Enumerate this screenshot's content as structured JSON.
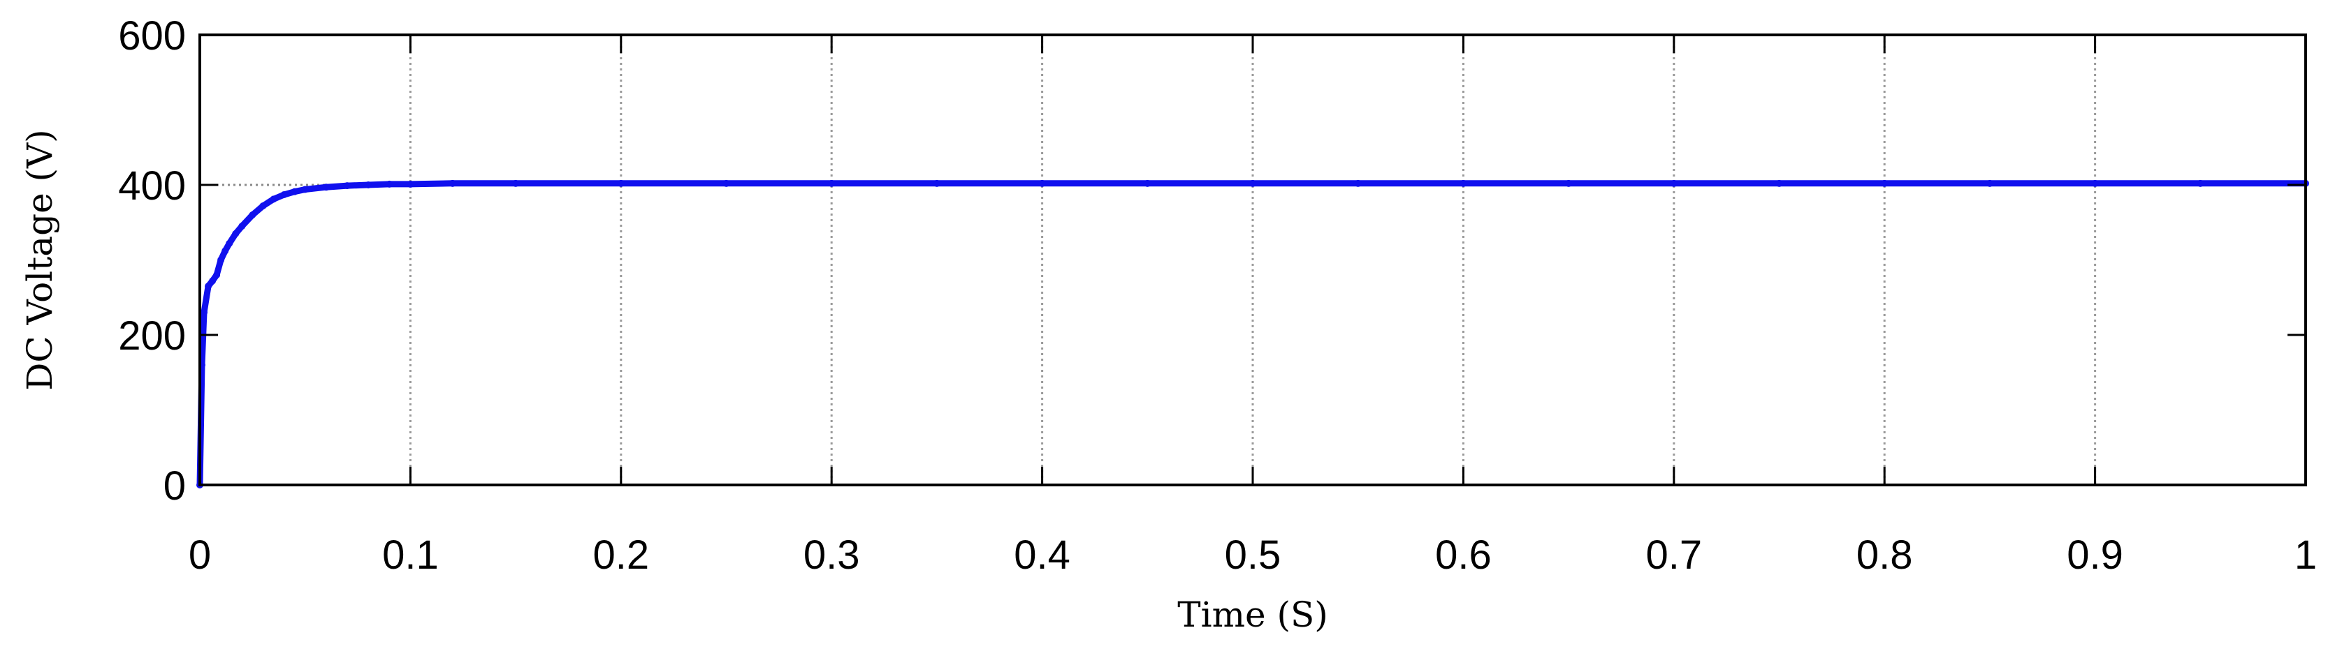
{
  "chart_data": {
    "type": "line",
    "title": "",
    "xlabel": "Time (S)",
    "ylabel": "DC Voltage (V)",
    "xlim": [
      0,
      1
    ],
    "ylim": [
      0,
      600
    ],
    "xticks": [
      0,
      0.1,
      0.2,
      0.3,
      0.4,
      0.5,
      0.6,
      0.7,
      0.8,
      0.9,
      1
    ],
    "xtick_labels": [
      "0",
      "0.1",
      "0.2",
      "0.3",
      "0.4",
      "0.5",
      "0.6",
      "0.7",
      "0.8",
      "0.9",
      "1"
    ],
    "yticks": [
      0,
      200,
      400,
      600
    ],
    "ytick_labels": [
      "0",
      "200",
      "400",
      "600"
    ],
    "grid": "vertical dotted at x ticks",
    "reference_lines": [
      {
        "y": 400,
        "style": "dotted"
      }
    ],
    "series": [
      {
        "color": "#1010ee",
        "x": [
          0,
          0.001,
          0.002,
          0.004,
          0.006,
          0.008,
          0.01,
          0.012,
          0.014,
          0.017,
          0.02,
          0.025,
          0.03,
          0.035,
          0.04,
          0.045,
          0.05,
          0.06,
          0.07,
          0.08,
          0.09,
          0.1,
          0.12,
          0.15,
          0.2,
          0.25,
          0.3,
          0.35,
          0.4,
          0.45,
          0.5,
          0.55,
          0.6,
          0.65,
          0.7,
          0.75,
          0.8,
          0.85,
          0.9,
          0.95,
          1
        ],
        "y": [
          0,
          160,
          230,
          265,
          272,
          280,
          300,
          312,
          322,
          335,
          345,
          360,
          372,
          381,
          387,
          391,
          394,
          397,
          399,
          400,
          401,
          401,
          402,
          402,
          402,
          402,
          402,
          402,
          402,
          402,
          402,
          402,
          402,
          402,
          402,
          402,
          402,
          402,
          402,
          402,
          402
        ]
      }
    ]
  }
}
